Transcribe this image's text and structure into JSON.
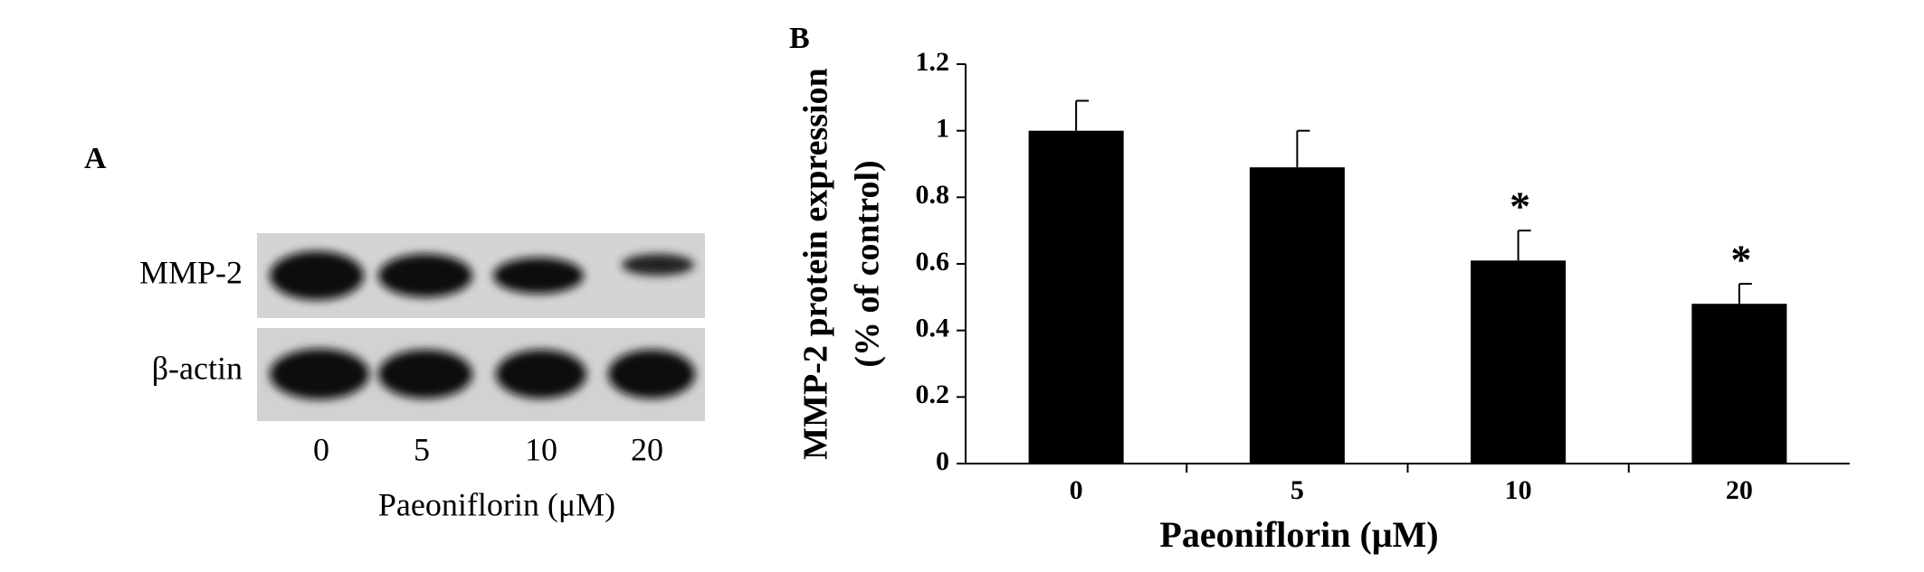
{
  "panel_a": {
    "label": "A",
    "rows": [
      "MMP-2",
      "β-actin"
    ],
    "lanes": [
      "0",
      "5",
      "10",
      "20"
    ],
    "xlabel": "Paeoniflorin (μM)"
  },
  "chart_data": {
    "type": "bar",
    "panel_label": "B",
    "categories": [
      "0",
      "5",
      "10",
      "20"
    ],
    "values": [
      1,
      0.89,
      0.61,
      0.48
    ],
    "errors": [
      0.09,
      0.11,
      0.09,
      0.06
    ],
    "significance": [
      null,
      null,
      "*",
      "*"
    ],
    "color": "#000000",
    "ylim": [
      0,
      1.2
    ],
    "yticks": [
      0,
      0.2,
      0.4,
      0.6,
      0.8,
      1,
      1.2
    ],
    "xlabel": "Paeoniflorin (μM)",
    "ylabel": [
      "MMP-2 protein expression",
      "(% of control)"
    ]
  }
}
